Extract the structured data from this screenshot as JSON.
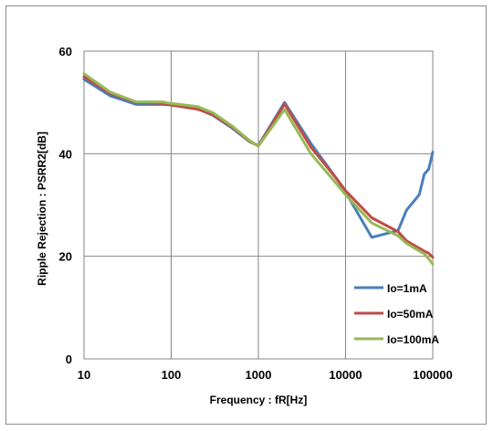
{
  "chart_data": {
    "type": "line",
    "title": "",
    "xlabel": "Frequency : fR[Hz]",
    "ylabel": "Ripple Rejection : PSRR2[dB]",
    "xscale": "log",
    "xlim": [
      10,
      100000
    ],
    "ylim": [
      0,
      60
    ],
    "x_ticks": [
      10,
      100,
      1000,
      10000,
      100000
    ],
    "x_tick_labels": [
      "10",
      "100",
      "1000",
      "10000",
      "100000"
    ],
    "y_ticks": [
      0,
      20,
      40,
      60
    ],
    "y_tick_labels": [
      "0",
      "20",
      "40",
      "60"
    ],
    "grid": true,
    "legend_position": "bottom-right",
    "series": [
      {
        "name": "Io=1mA",
        "color": "#4a7ebb",
        "x": [
          10,
          20,
          40,
          80,
          100,
          200,
          300,
          500,
          800,
          1000,
          2000,
          4000,
          8000,
          10000,
          20000,
          40000,
          50000,
          70000,
          80000,
          90000,
          100000
        ],
        "y": [
          54.5,
          51.3,
          49.6,
          49.6,
          49.5,
          48.8,
          47.5,
          45.0,
          42.3,
          41.6,
          50.0,
          42.0,
          35.0,
          32.5,
          23.7,
          25.0,
          29.0,
          32.0,
          36.0,
          37.0,
          40.3
        ]
      },
      {
        "name": "Io=50mA",
        "color": "#be4b48",
        "x": [
          10,
          20,
          40,
          80,
          100,
          200,
          300,
          500,
          800,
          1000,
          2000,
          4000,
          8000,
          10000,
          20000,
          40000,
          50000,
          80000,
          90000,
          100000
        ],
        "y": [
          55.0,
          51.8,
          50.0,
          49.8,
          49.5,
          48.7,
          47.6,
          45.2,
          42.4,
          41.5,
          49.7,
          41.3,
          35.0,
          32.8,
          27.5,
          24.8,
          23.0,
          21.0,
          20.6,
          19.8
        ]
      },
      {
        "name": "Io=100mA",
        "color": "#98b954",
        "x": [
          10,
          20,
          40,
          80,
          100,
          200,
          300,
          500,
          800,
          1000,
          2000,
          4000,
          8000,
          10000,
          20000,
          40000,
          50000,
          80000,
          90000,
          100000
        ],
        "y": [
          55.6,
          52.0,
          50.1,
          50.1,
          49.8,
          49.2,
          48.0,
          45.4,
          42.5,
          41.5,
          48.6,
          40.0,
          34.0,
          32.0,
          26.5,
          24.0,
          22.5,
          20.5,
          19.5,
          18.5
        ]
      }
    ]
  }
}
